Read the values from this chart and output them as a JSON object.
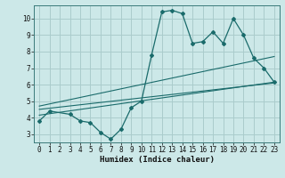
{
  "xlabel": "Humidex (Indice chaleur)",
  "bg_color": "#cce8e8",
  "grid_color": "#aacccc",
  "line_color": "#1a6b6b",
  "xlim": [
    -0.5,
    23.5
  ],
  "ylim": [
    2.5,
    10.8
  ],
  "xticks": [
    0,
    1,
    2,
    3,
    4,
    5,
    6,
    7,
    8,
    9,
    10,
    11,
    12,
    13,
    14,
    15,
    16,
    17,
    18,
    19,
    20,
    21,
    22,
    23
  ],
  "yticks": [
    3,
    4,
    5,
    6,
    7,
    8,
    9,
    10
  ],
  "series1_x": [
    0,
    1,
    3,
    4,
    5,
    6,
    7,
    8,
    9,
    10,
    11,
    12,
    13,
    14,
    15,
    16,
    17,
    18,
    19,
    20,
    21,
    22,
    23
  ],
  "series1_y": [
    3.8,
    4.4,
    4.2,
    3.8,
    3.7,
    3.1,
    2.7,
    3.3,
    4.6,
    5.0,
    7.8,
    10.4,
    10.5,
    10.3,
    8.5,
    8.6,
    9.2,
    8.5,
    10.0,
    9.0,
    7.6,
    7.0,
    6.15
  ],
  "series2_x": [
    0,
    23
  ],
  "series2_y": [
    4.15,
    6.15
  ],
  "series3_x": [
    0,
    23
  ],
  "series3_y": [
    4.5,
    6.1
  ],
  "series4_x": [
    0,
    23
  ],
  "series4_y": [
    4.7,
    7.7
  ]
}
